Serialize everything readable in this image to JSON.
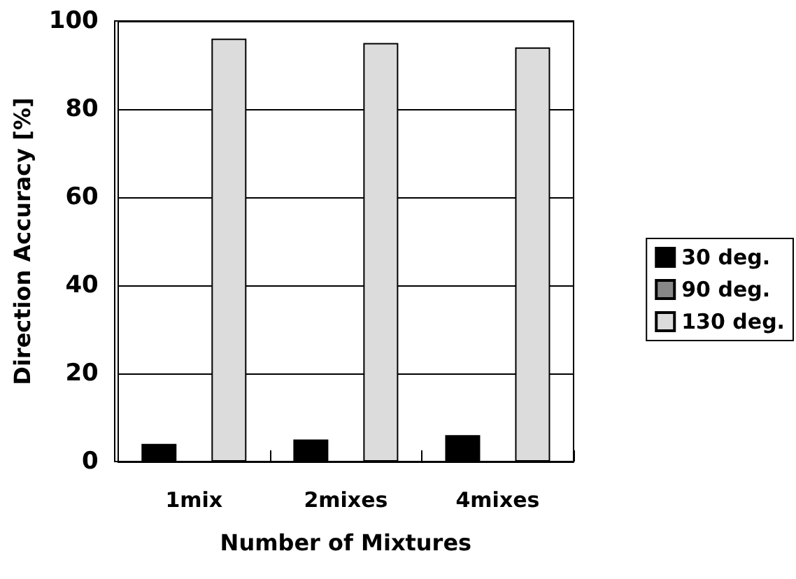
{
  "chart_data": {
    "type": "bar",
    "xlabel": "Number of Mixtures",
    "ylabel": "Direction Accuracy [%]",
    "categories": [
      "1mix",
      "2mixes",
      "4mixes"
    ],
    "series": [
      {
        "name": "30 deg.",
        "color": "#000000",
        "values": [
          4,
          5,
          6
        ]
      },
      {
        "name": "90 deg.",
        "color": "#888888",
        "values": [
          0,
          0,
          0
        ]
      },
      {
        "name": "130 deg.",
        "color": "#dcdcdc",
        "values": [
          96,
          95,
          94
        ]
      }
    ],
    "ylim": [
      0,
      100
    ],
    "yticks": [
      0,
      20,
      40,
      60,
      80,
      100
    ],
    "grid": "y",
    "legend": "right"
  }
}
